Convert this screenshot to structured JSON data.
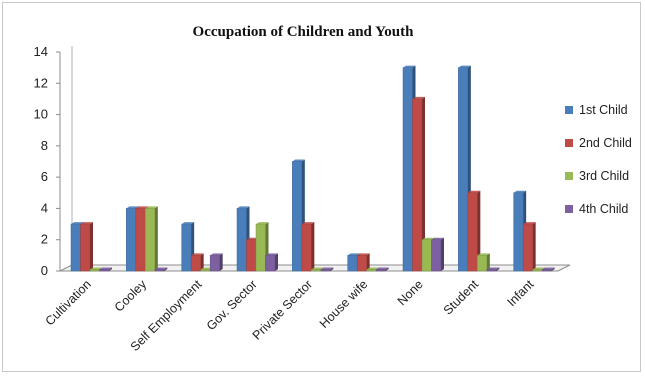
{
  "chart_data": {
    "type": "bar",
    "title": "Occupation of Children and Youth",
    "xlabel": "",
    "ylabel": "",
    "categories": [
      "Cultivation",
      "Cooley",
      "Self Employment",
      "Gov. Sector",
      "Private Sector",
      "House wife",
      "None",
      "Student",
      "Infant"
    ],
    "ylim": [
      0,
      14
    ],
    "yticks": [
      0,
      2,
      4,
      6,
      8,
      10,
      12,
      14
    ],
    "grid": false,
    "legend_position": "right",
    "series": [
      {
        "name": "1st Child",
        "color": "#4a7ebb",
        "values": [
          3,
          4,
          3,
          4,
          7,
          1,
          13,
          13,
          5
        ]
      },
      {
        "name": "2nd Child",
        "color": "#be4b48",
        "values": [
          3,
          4,
          1,
          2,
          3,
          1,
          11,
          5,
          3
        ]
      },
      {
        "name": "3rd Child",
        "color": "#98b954",
        "values": [
          0,
          4,
          0,
          3,
          0,
          0,
          2,
          1,
          0
        ]
      },
      {
        "name": "4th Child",
        "color": "#7d60a0",
        "values": [
          0,
          0,
          1,
          1,
          0,
          0,
          2,
          0,
          0
        ]
      }
    ]
  }
}
